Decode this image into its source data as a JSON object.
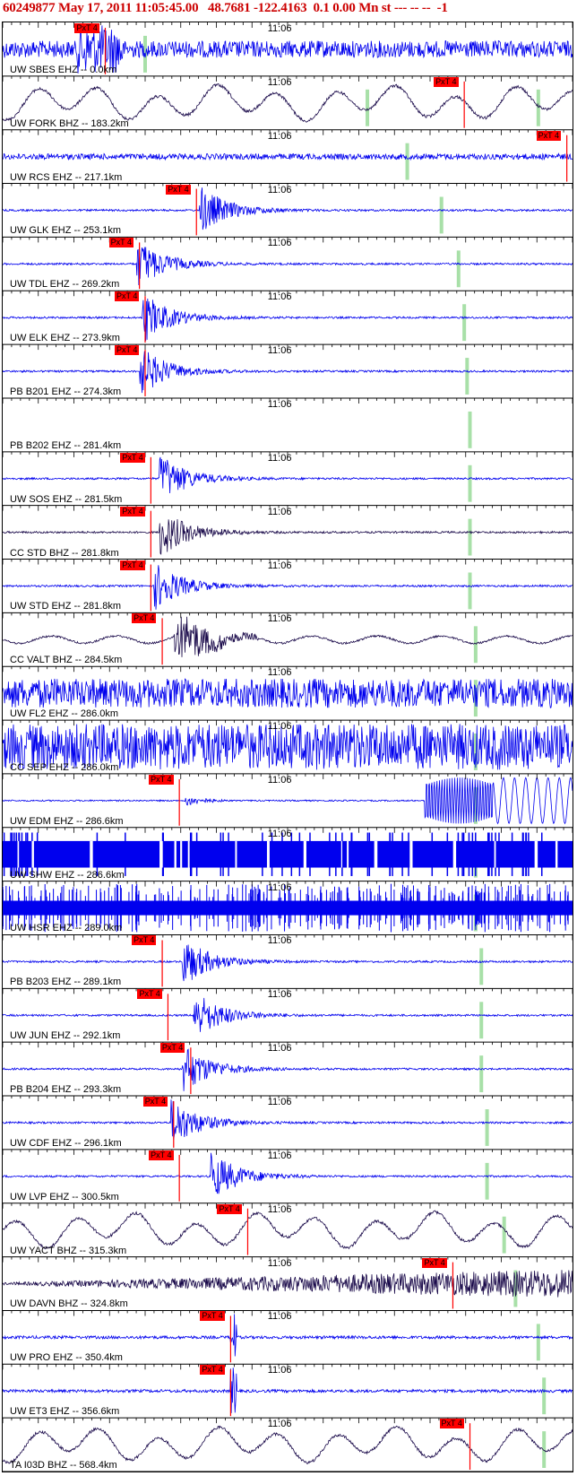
{
  "header": {
    "text": "60249877 May 17, 2011 11:05:45.00   48.7681 -122.4163  0.1 0.00 Mn st --- -- --  -1",
    "color": "#cc0000"
  },
  "colors": {
    "trace_blue": "#0000ee",
    "trace_dark": "#1a0a4a",
    "pick_red": "#ff0000",
    "marker_green": "#a8e0a8"
  },
  "time_mark": "11:06",
  "pick_tag": "PxT 4",
  "traces": [
    {
      "label": "UW SBES EHZ -- 0.0km",
      "style": "burst",
      "color": "blue",
      "pick": 0.18,
      "burst": 0.17,
      "green": 0.25
    },
    {
      "label": "UW FORK BHZ -- 183.2km",
      "style": "wave",
      "color": "dark",
      "pick": 0.81,
      "green": 0.64,
      "green2": 0.94
    },
    {
      "label": "UW RCS EHZ -- 217.1km",
      "style": "noise",
      "color": "blue",
      "pick": 0.99,
      "green": 0.71
    },
    {
      "label": "UW GLK EHZ -- 253.1km",
      "style": "event",
      "color": "blue",
      "pick": 0.34,
      "burst": 0.35,
      "green": 0.77
    },
    {
      "label": "UW TDL EHZ -- 269.2km",
      "style": "event",
      "color": "blue",
      "pick": 0.24,
      "burst": 0.24,
      "green": 0.8
    },
    {
      "label": "UW ELK EHZ -- 273.9km",
      "style": "event",
      "color": "blue",
      "pick": 0.25,
      "burst": 0.25,
      "green": 0.81
    },
    {
      "label": "PB B201 EHZ -- 274.3km",
      "style": "event",
      "color": "blue",
      "pick": 0.25,
      "burst": 0.245,
      "green": 0.815
    },
    {
      "label": "PB B202 EHZ -- 281.4km",
      "style": "blank",
      "color": "blue",
      "green": 0.82
    },
    {
      "label": "UW SOS EHZ -- 281.5km",
      "style": "event",
      "color": "blue",
      "pick": 0.26,
      "burst": 0.28,
      "green": 0.82
    },
    {
      "label": "CC STD BHZ -- 281.8km",
      "style": "event",
      "color": "dark",
      "pick": 0.26,
      "burst": 0.28,
      "green": 0.82
    },
    {
      "label": "UW STD EHZ -- 281.8km",
      "style": "event",
      "color": "blue",
      "pick": 0.26,
      "burst": 0.27,
      "green": 0.82
    },
    {
      "label": "CC VALT BHZ -- 284.5km",
      "style": "eventwave",
      "color": "dark",
      "pick": 0.28,
      "burst": 0.33,
      "green": 0.83
    },
    {
      "label": "UW FL2 EHZ -- 286.0km",
      "style": "hnoise",
      "color": "blue",
      "green": 0.83
    },
    {
      "label": "CC SEP EHZ -- 286.0km",
      "style": "vnoise",
      "color": "blue",
      "green": 0.83
    },
    {
      "label": "UW EDM EHZ -- 286.6km",
      "style": "edm",
      "color": "blue",
      "pick": 0.31,
      "burst": 0.32,
      "green": 0.83
    },
    {
      "label": "UW SHW EHZ -- 286.6km",
      "style": "block",
      "color": "blue",
      "green": 0.83
    },
    {
      "label": "UW HSR EHZ -- 289.0km",
      "style": "bars",
      "color": "blue",
      "green": 0.83
    },
    {
      "label": "PB B203 EHZ -- 289.1km",
      "style": "event",
      "color": "blue",
      "pick": 0.28,
      "burst": 0.32,
      "green": 0.84
    },
    {
      "label": "UW JUN EHZ -- 292.1km",
      "style": "event",
      "color": "blue",
      "pick": 0.29,
      "burst": 0.34,
      "green": 0.84
    },
    {
      "label": "PB B204 EHZ -- 293.3km",
      "style": "event",
      "color": "blue",
      "pick": 0.33,
      "burst": 0.32,
      "green": 0.84
    },
    {
      "label": "UW CDF EHZ -- 296.1km",
      "style": "event",
      "color": "blue",
      "pick": 0.3,
      "burst": 0.3,
      "green": 0.85
    },
    {
      "label": "UW LVP EHZ -- 300.5km",
      "style": "event",
      "color": "blue",
      "pick": 0.31,
      "burst": 0.37,
      "green": 0.85
    },
    {
      "label": "UW YACT BHZ -- 315.3km",
      "style": "wave",
      "color": "dark",
      "pick": 0.43,
      "burst": 0.42,
      "green": 0.88
    },
    {
      "label": "UW DAVN BHZ -- 324.8km",
      "style": "grow",
      "color": "dark",
      "pick": 0.79,
      "green": 0.9
    },
    {
      "label": "UW PRO EHZ -- 350.4km",
      "style": "spike",
      "color": "blue",
      "pick": 0.4,
      "burst": 0.405,
      "green": 0.94
    },
    {
      "label": "UW ET3 EHZ -- 356.6km",
      "style": "spike",
      "color": "blue",
      "pick": 0.4,
      "burst": 0.405,
      "green": 0.95
    },
    {
      "label": "TA I03D BHZ -- 568.4km",
      "style": "wave",
      "color": "dark",
      "pick": 0.82,
      "green": 0.95
    }
  ]
}
